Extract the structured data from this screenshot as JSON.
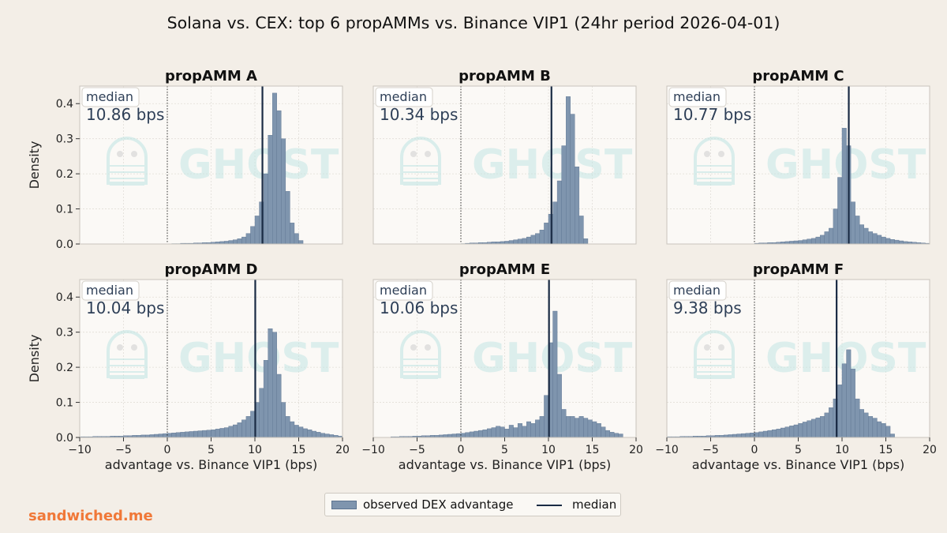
{
  "title": "Solana vs. CEX: top 6 propAMMs vs. Binance VIP1 (24hr period 2026-04-01)",
  "brand": "sandwiched.me",
  "watermark": "GHOST",
  "colors": {
    "background": "#f3eee7",
    "plot_bg": "#fbf9f6",
    "bar_fill": "#7f95ae",
    "bar_edge": "#5c7390",
    "median_line": "#1a2b44",
    "brand": "#f07838",
    "watermark": "#bfe5e3"
  },
  "legend": {
    "hist_label": "observed DEX advantage",
    "median_label": "median"
  },
  "chart_data": {
    "type": "bar",
    "layout": "2x3 grid of histograms, shared x and y axes",
    "xlabel": "advantage vs. Binance VIP1 (bps)",
    "ylabel": "Density",
    "xlim": [
      -10,
      20
    ],
    "ylim": [
      0,
      0.45
    ],
    "xticks": [
      -10,
      -5,
      0,
      5,
      10,
      15,
      20
    ],
    "yticks": [
      0.0,
      0.1,
      0.2,
      0.3,
      0.4
    ],
    "bin_width": 0.5,
    "grid": true,
    "zero_line": "dotted vertical line at x = 0",
    "median_box_label": "median",
    "panels": [
      {
        "title": "propAMM A",
        "median": 10.86,
        "median_text": "10.86 bps",
        "bins_start": 0.5,
        "density": [
          0.001,
          0.001,
          0.002,
          0.002,
          0.002,
          0.003,
          0.003,
          0.004,
          0.004,
          0.005,
          0.006,
          0.007,
          0.008,
          0.01,
          0.012,
          0.015,
          0.02,
          0.03,
          0.05,
          0.08,
          0.12,
          0.2,
          0.31,
          0.43,
          0.38,
          0.3,
          0.15,
          0.06,
          0.03,
          0.01
        ]
      },
      {
        "title": "propAMM B",
        "median": 10.34,
        "median_text": "10.34 bps",
        "bins_start": 0.0,
        "density": [
          0.001,
          0.002,
          0.003,
          0.003,
          0.004,
          0.004,
          0.005,
          0.006,
          0.006,
          0.007,
          0.008,
          0.01,
          0.012,
          0.014,
          0.016,
          0.02,
          0.025,
          0.03,
          0.04,
          0.06,
          0.085,
          0.12,
          0.18,
          0.28,
          0.42,
          0.37,
          0.22,
          0.08,
          0.015
        ]
      },
      {
        "title": "propAMM C",
        "median": 10.77,
        "median_text": "10.77 bps",
        "bins_start": 0.0,
        "density": [
          0.002,
          0.003,
          0.003,
          0.004,
          0.004,
          0.005,
          0.006,
          0.007,
          0.008,
          0.009,
          0.01,
          0.012,
          0.014,
          0.016,
          0.02,
          0.025,
          0.035,
          0.045,
          0.1,
          0.19,
          0.33,
          0.28,
          0.12,
          0.08,
          0.055,
          0.045,
          0.035,
          0.03,
          0.025,
          0.02,
          0.016,
          0.013,
          0.011,
          0.009,
          0.007,
          0.006,
          0.005,
          0.004,
          0.003,
          0.002
        ]
      },
      {
        "title": "propAMM D",
        "median": 10.04,
        "median_text": "10.04 bps",
        "bins_start": -10.0,
        "density": [
          0.002,
          0.002,
          0.002,
          0.003,
          0.003,
          0.003,
          0.003,
          0.004,
          0.004,
          0.004,
          0.005,
          0.005,
          0.006,
          0.006,
          0.007,
          0.007,
          0.008,
          0.009,
          0.01,
          0.011,
          0.012,
          0.013,
          0.014,
          0.015,
          0.016,
          0.017,
          0.018,
          0.019,
          0.02,
          0.021,
          0.022,
          0.024,
          0.026,
          0.028,
          0.032,
          0.036,
          0.042,
          0.05,
          0.06,
          0.075,
          0.1,
          0.14,
          0.22,
          0.31,
          0.3,
          0.18,
          0.1,
          0.06,
          0.045,
          0.035,
          0.03,
          0.025,
          0.022,
          0.018,
          0.015,
          0.012,
          0.01,
          0.008,
          0.006,
          0.004
        ]
      },
      {
        "title": "propAMM E",
        "median": 10.06,
        "median_text": "10.06 bps",
        "bins_start": -8.0,
        "density": [
          0.002,
          0.002,
          0.003,
          0.003,
          0.003,
          0.004,
          0.004,
          0.005,
          0.005,
          0.006,
          0.006,
          0.007,
          0.008,
          0.009,
          0.01,
          0.011,
          0.012,
          0.014,
          0.016,
          0.018,
          0.02,
          0.022,
          0.025,
          0.028,
          0.032,
          0.03,
          0.024,
          0.035,
          0.028,
          0.04,
          0.032,
          0.045,
          0.04,
          0.05,
          0.06,
          0.12,
          0.27,
          0.36,
          0.18,
          0.08,
          0.06,
          0.06,
          0.055,
          0.06,
          0.055,
          0.05,
          0.045,
          0.04,
          0.03,
          0.02,
          0.015,
          0.012,
          0.01
        ]
      },
      {
        "title": "propAMM F",
        "median": 9.38,
        "median_text": "9.38 bps",
        "bins_start": -10.0,
        "density": [
          0.002,
          0.002,
          0.002,
          0.003,
          0.003,
          0.003,
          0.004,
          0.004,
          0.004,
          0.005,
          0.005,
          0.006,
          0.006,
          0.007,
          0.008,
          0.009,
          0.01,
          0.011,
          0.012,
          0.013,
          0.014,
          0.016,
          0.018,
          0.02,
          0.022,
          0.024,
          0.027,
          0.03,
          0.033,
          0.036,
          0.04,
          0.044,
          0.048,
          0.052,
          0.056,
          0.06,
          0.07,
          0.085,
          0.11,
          0.15,
          0.21,
          0.25,
          0.195,
          0.11,
          0.08,
          0.07,
          0.06,
          0.055,
          0.045,
          0.04,
          0.032,
          0.01
        ]
      }
    ]
  }
}
